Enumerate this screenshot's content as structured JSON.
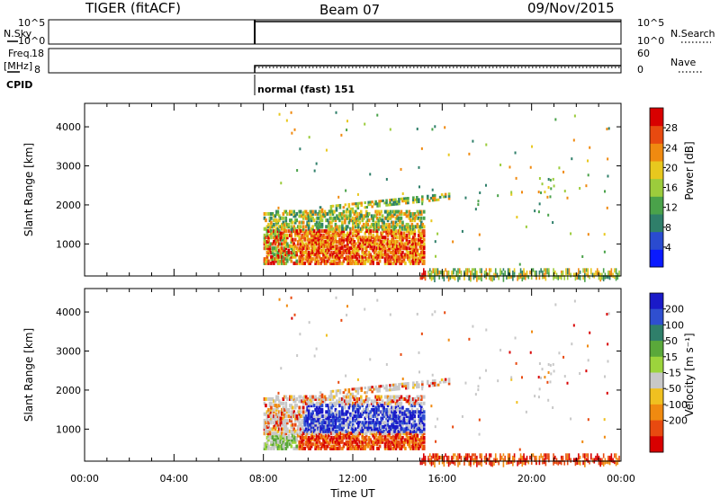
{
  "header": {
    "radar": "TIGER (fitACF)",
    "beam": "Beam 07",
    "date": "09/Nov/2015"
  },
  "panels": {
    "nsky": {
      "label": "N.Sky",
      "left_ticks": [
        "10^5",
        "10^0"
      ],
      "right_ticks": [
        "10^5",
        "10^0"
      ],
      "right_label": "N.Search"
    },
    "freq": {
      "label_line1": "Freq.",
      "label_line2": "[MHz]",
      "left_ticks": [
        "18",
        "8"
      ],
      "right_ticks": [
        "60",
        "0"
      ],
      "right_label": "Nave"
    },
    "cpid": {
      "label": "CPID",
      "mode_text": "normal (fast) 151"
    }
  },
  "chart_data": [
    {
      "type": "heatmap",
      "name": "power",
      "ylabel": "Slant Range [km]",
      "yticks": [
        "1000",
        "2000",
        "3000",
        "4000"
      ],
      "ylim": [
        180,
        4600
      ],
      "xlim": [
        0,
        24
      ],
      "colorbar_label": "Power [dB]",
      "colorbar_ticks": [
        "4",
        "8",
        "12",
        "16",
        "20",
        "24",
        "28"
      ],
      "colorbar_range": [
        0,
        32
      ],
      "colorbar_colors": [
        "#0a1aff",
        "#2a4bd0",
        "#2f7f6a",
        "#4aa24a",
        "#9ccc3c",
        "#e8c81e",
        "#f08a10",
        "#e84a10",
        "#d80000"
      ]
    },
    {
      "type": "heatmap",
      "name": "velocity",
      "ylabel": "Slant Range [km]",
      "yticks": [
        "1000",
        "2000",
        "3000",
        "4000"
      ],
      "ylim": [
        180,
        4600
      ],
      "xlim": [
        0,
        24
      ],
      "colorbar_label": "Velocity [m s⁻¹]",
      "colorbar_ticks": [
        "200",
        "100",
        "50",
        "15",
        "-15",
        "-50",
        "-100",
        "-200"
      ],
      "colorbar_colors": [
        "#1a1ac8",
        "#2f4fd0",
        "#2f7f6a",
        "#5aa83a",
        "#9cd43c",
        "#c8c8c8",
        "#f0c020",
        "#f08a10",
        "#e84a10",
        "#d80000"
      ]
    }
  ],
  "xaxis": {
    "label": "Time UT",
    "ticks": [
      "00:00",
      "04:00",
      "08:00",
      "12:00",
      "16:00",
      "20:00",
      "00:00"
    ]
  }
}
